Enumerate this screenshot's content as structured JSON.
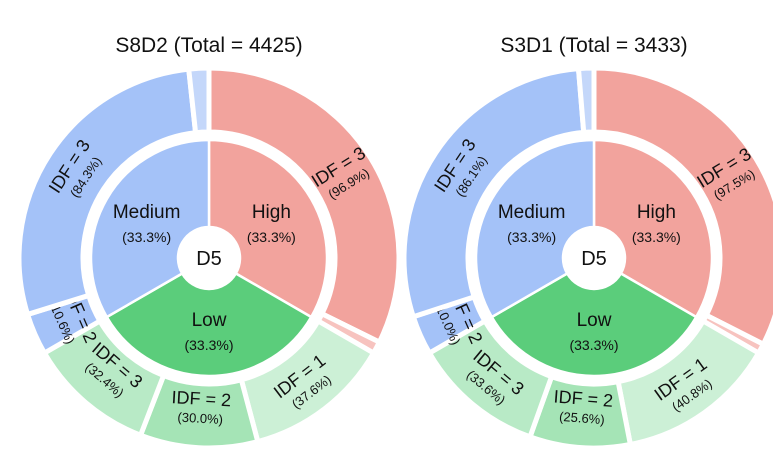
{
  "chart_data": [
    {
      "type": "pie",
      "title": "S8D2 (Total = 4425)",
      "center_label": "D5",
      "inner": [
        {
          "name": "High",
          "label": "(33.3%)",
          "value": 33.3,
          "color": "#f2a39d"
        },
        {
          "name": "Low",
          "label": "(33.3%)",
          "value": 33.3,
          "color": "#5bcd7b"
        },
        {
          "name": "Medium",
          "label": "(33.3%)",
          "value": 33.3,
          "color": "#a4c2f8"
        }
      ],
      "outer": [
        {
          "parent": "High",
          "name": "IDF = 3",
          "label": "(96.9%)",
          "value": 96.9
        },
        {
          "parent": "High",
          "name": "",
          "label": "",
          "value": 3.1
        },
        {
          "parent": "Low",
          "name": "IDF = 1",
          "label": "(37.6%)",
          "value": 37.6
        },
        {
          "parent": "Low",
          "name": "IDF = 2",
          "label": "(30.0%)",
          "value": 30.0
        },
        {
          "parent": "Low",
          "name": "IDF = 3",
          "label": "(32.4%)",
          "value": 32.4
        },
        {
          "parent": "Medium",
          "name": "IDF = 2",
          "label": "(10.6%)",
          "value": 10.6
        },
        {
          "parent": "Medium",
          "name": "IDF = 3",
          "label": "(84.3%)",
          "value": 84.3
        },
        {
          "parent": "Medium",
          "name": "",
          "label": "",
          "value": 5.1
        }
      ]
    },
    {
      "type": "pie",
      "title": "S3D1 (Total = 3433)",
      "center_label": "D5",
      "inner": [
        {
          "name": "High",
          "label": "(33.3%)",
          "value": 33.3,
          "color": "#f2a39d"
        },
        {
          "name": "Low",
          "label": "(33.3%)",
          "value": 33.3,
          "color": "#5bcd7b"
        },
        {
          "name": "Medium",
          "label": "(33.3%)",
          "value": 33.3,
          "color": "#a4c2f8"
        }
      ],
      "outer": [
        {
          "parent": "High",
          "name": "IDF = 3",
          "label": "(97.5%)",
          "value": 97.5
        },
        {
          "parent": "High",
          "name": "",
          "label": "",
          "value": 2.5
        },
        {
          "parent": "Low",
          "name": "IDF = 1",
          "label": "(40.8%)",
          "value": 40.8
        },
        {
          "parent": "Low",
          "name": "IDF = 2",
          "label": "(25.6%)",
          "value": 25.6
        },
        {
          "parent": "Low",
          "name": "IDF = 3",
          "label": "(33.6%)",
          "value": 33.6
        },
        {
          "parent": "Medium",
          "name": "IDF = 2",
          "label": "(10.0%)",
          "value": 10.0
        },
        {
          "parent": "Medium",
          "name": "IDF = 3",
          "label": "(86.1%)",
          "value": 86.1
        },
        {
          "parent": "Medium",
          "name": "",
          "label": "",
          "value": 3.9
        }
      ]
    }
  ]
}
